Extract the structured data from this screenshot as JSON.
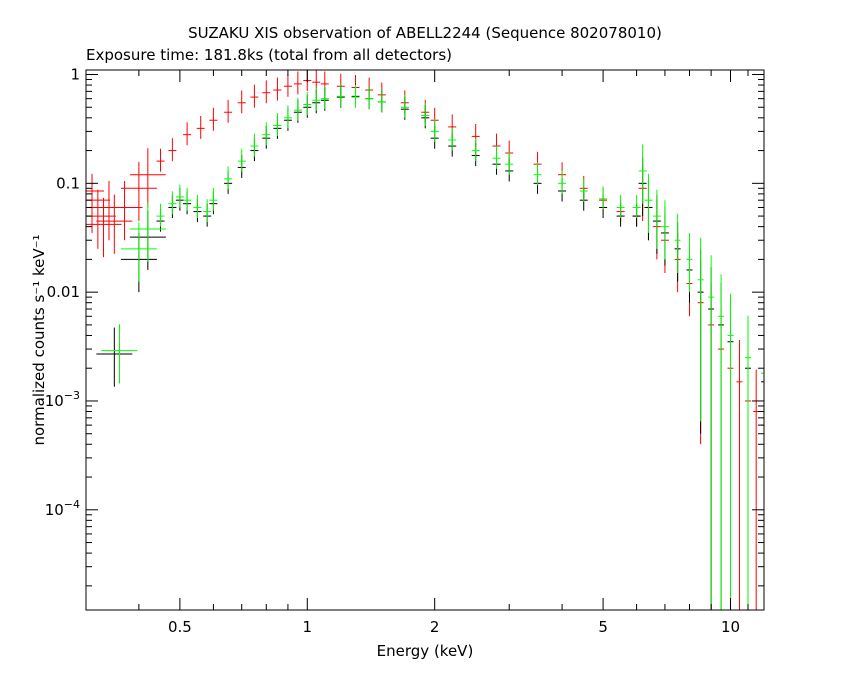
{
  "chart_data": {
    "type": "scatter",
    "title": "SUZAKU XIS observation of ABELL2244 (Sequence 802078010)",
    "subtitle": "Exposure time: 181.8ks (total from all detectors)",
    "xlabel": "Energy (keV)",
    "ylabel": "normalized counts s⁻¹ keV⁻¹",
    "x_scale": "log",
    "y_scale": "log",
    "xlim": [
      0.3,
      12
    ],
    "ylim": [
      1.2e-05,
      1.1
    ],
    "grid": false,
    "legend": "none",
    "x_ticks": [
      {
        "value": 0.5,
        "label": "0.5"
      },
      {
        "value": 1,
        "label": "1"
      },
      {
        "value": 2,
        "label": "2"
      },
      {
        "value": 5,
        "label": "5"
      },
      {
        "value": 10,
        "label": "10"
      }
    ],
    "y_ticks": [
      {
        "value": 1,
        "label": "1"
      },
      {
        "value": 0.1,
        "label": "0.1"
      },
      {
        "value": 0.01,
        "label": "0.01"
      },
      {
        "value": 0.001,
        "label": "10",
        "exp": "−3"
      },
      {
        "value": 0.0001,
        "label": "10",
        "exp": "−4"
      }
    ],
    "series": [
      {
        "color": "#ff0000",
        "points": [
          [
            0.3,
            0.085
          ],
          [
            0.31,
            0.07
          ],
          [
            0.32,
            0.05
          ],
          [
            0.33,
            0.042
          ],
          [
            0.34,
            0.06
          ],
          [
            0.35,
            0.045
          ],
          [
            0.37,
            0.06
          ],
          [
            0.4,
            0.09
          ],
          [
            0.42,
            0.12
          ],
          [
            0.45,
            0.16
          ],
          [
            0.48,
            0.2
          ],
          [
            0.52,
            0.28
          ],
          [
            0.56,
            0.32
          ],
          [
            0.6,
            0.38
          ],
          [
            0.65,
            0.45
          ],
          [
            0.7,
            0.55
          ],
          [
            0.75,
            0.62
          ],
          [
            0.8,
            0.68
          ],
          [
            0.85,
            0.72
          ],
          [
            0.9,
            0.78
          ],
          [
            0.95,
            0.82
          ],
          [
            1.0,
            0.88
          ],
          [
            1.05,
            0.85
          ],
          [
            1.1,
            0.82
          ],
          [
            1.2,
            0.78
          ],
          [
            1.3,
            0.76
          ],
          [
            1.4,
            0.72
          ],
          [
            1.5,
            0.65
          ],
          [
            1.7,
            0.55
          ],
          [
            1.9,
            0.45
          ],
          [
            2.0,
            0.38
          ],
          [
            2.2,
            0.33
          ],
          [
            2.5,
            0.27
          ],
          [
            2.8,
            0.22
          ],
          [
            3.0,
            0.19
          ],
          [
            3.5,
            0.15
          ],
          [
            4.0,
            0.12
          ],
          [
            4.5,
            0.09
          ],
          [
            5.0,
            0.07
          ],
          [
            5.5,
            0.055
          ],
          [
            6.0,
            0.05
          ],
          [
            6.2,
            0.09
          ],
          [
            6.4,
            0.06
          ],
          [
            6.7,
            0.04
          ],
          [
            7.0,
            0.03
          ],
          [
            7.5,
            0.02
          ],
          [
            8.0,
            0.012
          ],
          [
            8.5,
            0.008
          ],
          [
            9.0,
            0.005
          ],
          [
            9.5,
            0.003
          ],
          [
            10.0,
            0.002
          ],
          [
            10.5,
            0.0015
          ],
          [
            11.0,
            0.001
          ],
          [
            11.5,
            0.0008
          ],
          [
            12.0,
            0.0006
          ]
        ]
      },
      {
        "color": "#000000",
        "points": [
          [
            0.35,
            0.0027
          ],
          [
            0.4,
            0.02
          ],
          [
            0.42,
            0.032
          ],
          [
            0.45,
            0.045
          ],
          [
            0.48,
            0.06
          ],
          [
            0.5,
            0.07
          ],
          [
            0.52,
            0.065
          ],
          [
            0.55,
            0.055
          ],
          [
            0.58,
            0.05
          ],
          [
            0.6,
            0.065
          ],
          [
            0.65,
            0.1
          ],
          [
            0.7,
            0.14
          ],
          [
            0.75,
            0.2
          ],
          [
            0.8,
            0.26
          ],
          [
            0.85,
            0.32
          ],
          [
            0.9,
            0.38
          ],
          [
            0.95,
            0.45
          ],
          [
            1.0,
            0.5
          ],
          [
            1.05,
            0.55
          ],
          [
            1.1,
            0.58
          ],
          [
            1.2,
            0.62
          ],
          [
            1.3,
            0.63
          ],
          [
            1.4,
            0.6
          ],
          [
            1.5,
            0.56
          ],
          [
            1.7,
            0.48
          ],
          [
            1.9,
            0.4
          ],
          [
            2.0,
            0.26
          ],
          [
            2.2,
            0.22
          ],
          [
            2.5,
            0.18
          ],
          [
            2.8,
            0.15
          ],
          [
            3.0,
            0.13
          ],
          [
            3.5,
            0.1
          ],
          [
            4.0,
            0.085
          ],
          [
            4.5,
            0.07
          ],
          [
            5.0,
            0.06
          ],
          [
            5.5,
            0.05
          ],
          [
            6.0,
            0.05
          ],
          [
            6.2,
            0.1
          ],
          [
            6.4,
            0.06
          ],
          [
            6.7,
            0.045
          ],
          [
            7.0,
            0.035
          ],
          [
            7.5,
            0.025
          ],
          [
            8.0,
            0.016
          ],
          [
            8.5,
            0.01
          ],
          [
            9.0,
            0.007
          ],
          [
            9.5,
            0.005
          ],
          [
            10.0,
            0.0035
          ],
          [
            11.0,
            0.002
          ],
          [
            12.0,
            0.0015
          ]
        ]
      },
      {
        "color": "#00ff00",
        "points": [
          [
            0.36,
            0.0029
          ],
          [
            0.4,
            0.025
          ],
          [
            0.42,
            0.038
          ],
          [
            0.45,
            0.05
          ],
          [
            0.48,
            0.065
          ],
          [
            0.5,
            0.075
          ],
          [
            0.52,
            0.07
          ],
          [
            0.55,
            0.06
          ],
          [
            0.58,
            0.055
          ],
          [
            0.6,
            0.07
          ],
          [
            0.65,
            0.11
          ],
          [
            0.7,
            0.16
          ],
          [
            0.75,
            0.22
          ],
          [
            0.8,
            0.28
          ],
          [
            0.85,
            0.34
          ],
          [
            0.9,
            0.4
          ],
          [
            0.95,
            0.47
          ],
          [
            1.0,
            0.53
          ],
          [
            1.05,
            0.58
          ],
          [
            1.1,
            0.6
          ],
          [
            1.2,
            0.63
          ],
          [
            1.3,
            0.62
          ],
          [
            1.4,
            0.6
          ],
          [
            1.5,
            0.56
          ],
          [
            1.7,
            0.5
          ],
          [
            1.9,
            0.42
          ],
          [
            2.0,
            0.3
          ],
          [
            2.2,
            0.25
          ],
          [
            2.5,
            0.2
          ],
          [
            2.8,
            0.17
          ],
          [
            3.0,
            0.15
          ],
          [
            3.5,
            0.12
          ],
          [
            4.0,
            0.1
          ],
          [
            4.5,
            0.085
          ],
          [
            5.0,
            0.072
          ],
          [
            5.5,
            0.06
          ],
          [
            6.0,
            0.06
          ],
          [
            6.2,
            0.13
          ],
          [
            6.4,
            0.07
          ],
          [
            6.7,
            0.05
          ],
          [
            7.0,
            0.04
          ],
          [
            7.5,
            0.03
          ],
          [
            8.0,
            0.02
          ],
          [
            8.5,
            0.013
          ],
          [
            9.0,
            0.009
          ],
          [
            9.5,
            0.006
          ],
          [
            10.0,
            0.004
          ],
          [
            11.0,
            0.0025
          ],
          [
            12.0,
            0.0018
          ]
        ]
      }
    ]
  }
}
